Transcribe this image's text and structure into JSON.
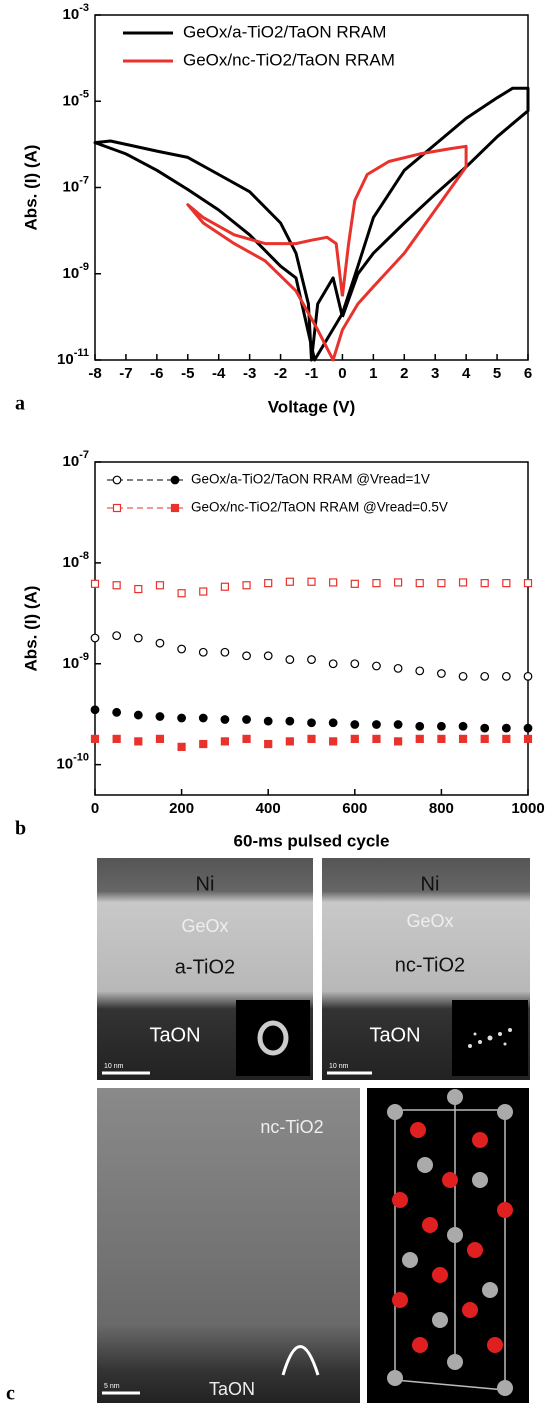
{
  "chart_data": [
    {
      "type": "line",
      "panel_label": "a",
      "xlabel": "Voltage (V)",
      "ylabel": "Abs. (I) (A)",
      "xlim": [
        -8,
        6
      ],
      "xticks": [
        -8,
        -7,
        -6,
        -5,
        -4,
        -3,
        -2,
        -1,
        0,
        1,
        2,
        3,
        4,
        5,
        6
      ],
      "ylim": [
        1e-11,
        0.001
      ],
      "log_y": true,
      "yticks": [
        {
          "value": 1e-11,
          "label": "10-11"
        },
        {
          "value": 1e-09,
          "label": "10-9"
        },
        {
          "value": 1e-07,
          "label": "10-7"
        },
        {
          "value": 1e-05,
          "label": "10-5"
        },
        {
          "value": 0.001,
          "label": "10-3"
        }
      ],
      "legend": "upper left",
      "series": [
        {
          "name": "GeOx/a-TiO2/TaON RRAM",
          "color": "#000000",
          "x": [
            0,
            0.5,
            1,
            2,
            3,
            4,
            5,
            6,
            6,
            5.5,
            5,
            4,
            3,
            2,
            1,
            0.5,
            0,
            -0.9,
            -1.5,
            -2,
            -3,
            -4,
            -5,
            -6,
            -7,
            -8,
            -7.5,
            -6,
            -5,
            -4,
            -3,
            -2,
            -1.5,
            -1.1,
            -1,
            -0.8,
            -0.3,
            0
          ],
          "values": [
            1e-10,
            1e-09,
            3e-09,
            1.5e-08,
            7e-08,
            3e-07,
            1.5e-06,
            6e-06,
            2e-05,
            2e-05,
            1.2e-05,
            4e-06,
            1e-06,
            2.5e-07,
            2e-08,
            1.5e-09,
            1.2e-10,
            1e-11,
            8e-10,
            1.5e-09,
            8e-09,
            3e-08,
            9e-08,
            2.5e-07,
            6e-07,
            1.1e-06,
            1.2e-06,
            7e-07,
            5e-07,
            2e-07,
            8e-08,
            1.5e-08,
            3e-09,
            2e-10,
            1e-11,
            2e-10,
            8e-10,
            1e-10
          ]
        },
        {
          "name": "GeOx/nc-TiO2/TaON RRAM",
          "color": "#e8322b",
          "x": [
            0,
            0.2,
            0.4,
            0.8,
            1.5,
            2.5,
            3.5,
            4,
            4,
            3,
            2,
            1,
            0.5,
            0,
            -0.3,
            -0.8,
            -1.5,
            -2.5,
            -3.5,
            -4.5,
            -5,
            -4.5,
            -3.5,
            -2.5,
            -1.5,
            -1,
            -0.5,
            -0.2,
            0
          ],
          "values": [
            3e-10,
            5e-09,
            5e-08,
            2e-07,
            4e-07,
            6e-07,
            8e-07,
            9e-07,
            3e-07,
            3e-08,
            3e-09,
            5e-10,
            2e-10,
            5e-11,
            1e-11,
            5e-11,
            4e-10,
            2e-09,
            5e-09,
            1.5e-08,
            4e-08,
            2e-08,
            8e-09,
            5e-09,
            5e-09,
            6e-09,
            7e-09,
            5e-09,
            3e-10
          ]
        }
      ]
    },
    {
      "type": "scatter",
      "panel_label": "b",
      "xlabel": "60-ms pulsed cycle",
      "ylabel": "Abs. (I) (A)",
      "xlim": [
        0,
        1000
      ],
      "xticks": [
        0,
        200,
        400,
        600,
        800,
        1000
      ],
      "ylim": [
        5e-11,
        1e-07
      ],
      "log_y": true,
      "yticks": [
        {
          "value": 1e-10,
          "label": "10-10"
        },
        {
          "value": 1e-09,
          "label": "10-9"
        },
        {
          "value": 1e-08,
          "label": "10-8"
        },
        {
          "value": 1e-07,
          "label": "10-7"
        }
      ],
      "legend": "upper left",
      "x": [
        0,
        50,
        100,
        150,
        200,
        250,
        300,
        350,
        400,
        450,
        500,
        550,
        600,
        650,
        700,
        750,
        800,
        850,
        900,
        950,
        1000
      ],
      "series": [
        {
          "name": "GeOx/a-TiO2/TaON RRAM @Vread=1V",
          "color": "#000000",
          "marker": "circle",
          "filled": false,
          "values": [
            1.8e-09,
            1.9e-09,
            1.8e-09,
            1.6e-09,
            1.4e-09,
            1.3e-09,
            1.3e-09,
            1.2e-09,
            1.2e-09,
            1.1e-09,
            1.1e-09,
            1e-09,
            1e-09,
            9.5e-10,
            9e-10,
            8.5e-10,
            8e-10,
            7.5e-10,
            7.5e-10,
            7.5e-10,
            7.5e-10
          ]
        },
        {
          "name": "",
          "color": "#000000",
          "marker": "circle",
          "filled": true,
          "values": [
            3.5e-10,
            3.3e-10,
            3.1e-10,
            3e-10,
            2.9e-10,
            2.9e-10,
            2.8e-10,
            2.8e-10,
            2.7e-10,
            2.7e-10,
            2.6e-10,
            2.6e-10,
            2.5e-10,
            2.5e-10,
            2.5e-10,
            2.4e-10,
            2.4e-10,
            2.4e-10,
            2.3e-10,
            2.3e-10,
            2.3e-10
          ]
        },
        {
          "name": "GeOx/nc-TiO2/TaON RRAM @Vread=0.5V",
          "color": "#e8322b",
          "marker": "square",
          "filled": false,
          "values": [
            6.2e-09,
            6e-09,
            5.5e-09,
            6e-09,
            5e-09,
            5.2e-09,
            5.8e-09,
            6e-09,
            6.3e-09,
            6.5e-09,
            6.5e-09,
            6.4e-09,
            6.2e-09,
            6.3e-09,
            6.4e-09,
            6.3e-09,
            6.3e-09,
            6.4e-09,
            6.3e-09,
            6.3e-09,
            6.3e-09
          ]
        },
        {
          "name": "",
          "color": "#e8322b",
          "marker": "square",
          "filled": true,
          "values": [
            1.8e-10,
            1.8e-10,
            1.7e-10,
            1.8e-10,
            1.5e-10,
            1.6e-10,
            1.7e-10,
            1.8e-10,
            1.6e-10,
            1.7e-10,
            1.8e-10,
            1.7e-10,
            1.8e-10,
            1.8e-10,
            1.7e-10,
            1.8e-10,
            1.8e-10,
            1.8e-10,
            1.8e-10,
            1.8e-10,
            1.8e-10
          ]
        }
      ]
    }
  ],
  "panel_c": {
    "label": "c",
    "image_left": {
      "ni": "Ni",
      "geox": "GeOx",
      "oxide": "a-TiO2",
      "bottom": "TaON",
      "scale": "10 nm"
    },
    "image_right": {
      "ni": "Ni",
      "geox": "GeOx",
      "oxide": "nc-TiO2",
      "bottom": "TaON",
      "scale": "10 nm"
    },
    "image_hr": {
      "oxide": "nc-TiO2",
      "bottom": "TaON",
      "scale": "5 nm"
    }
  }
}
